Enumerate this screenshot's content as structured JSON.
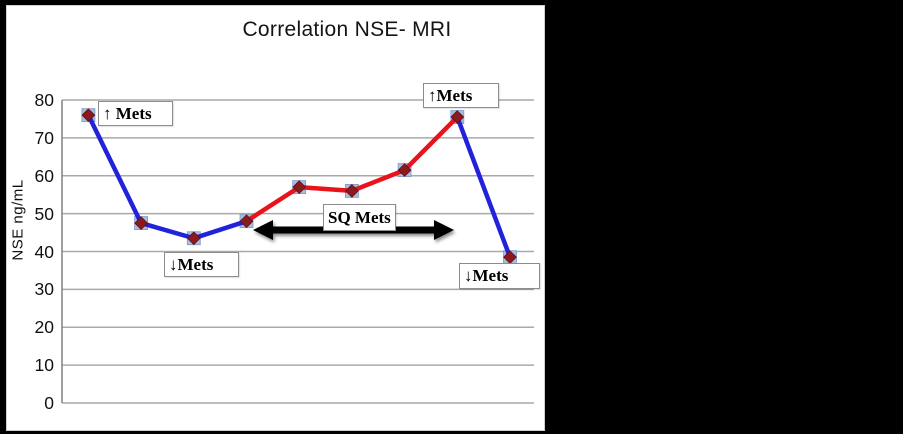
{
  "title": "Correlation NSE- MRI",
  "y_axis": {
    "label": "NSE ng/mL"
  },
  "annotations": {
    "mets_up_left": "↑ Mets",
    "mets_down_left": "↓Mets",
    "sq_mets": "SQ Mets",
    "mets_up_right": "↑Mets",
    "mets_down_right": "↓Mets"
  },
  "colors": {
    "line_blue": "#2222DC",
    "line_red": "#E8131B",
    "marker_diamond": "#8B1A1F",
    "marker_diamond_edge": "#5E1013",
    "marker_halo": "#A9BEDF",
    "marker_halo_edge": "#7E99C8",
    "gridline": "#A9A9A9",
    "axis_line": "#808080",
    "arrow": "#000000",
    "panel_background": "#FFFFFF",
    "page_background": "#000000"
  },
  "chart_data": {
    "type": "line",
    "title": "Correlation NSE- MRI",
    "xlabel": "",
    "ylabel": "NSE ng/mL",
    "ylim": [
      0,
      80
    ],
    "yticks": [
      0,
      10,
      20,
      30,
      40,
      50,
      60,
      70,
      80
    ],
    "grid": true,
    "legend_position": "none",
    "x": [
      1,
      2,
      3,
      4,
      5,
      6,
      7,
      8,
      9
    ],
    "values": [
      76,
      47.5,
      43.5,
      48,
      57,
      56,
      61.5,
      75.5,
      38.5
    ],
    "segment_colors": [
      "blue",
      "blue",
      "blue",
      "red",
      "red",
      "red",
      "red",
      "blue"
    ],
    "marker": "diamond-on-square",
    "annotations": [
      {
        "text": "↑ Mets",
        "near": "point 1, value 76"
      },
      {
        "text": "↓Mets",
        "near": "point 3, value 43.5"
      },
      {
        "text": "SQ Mets",
        "near": "above double arrow spanning points 4 to 8"
      },
      {
        "text": "↑Mets",
        "near": "point 8, value 75.5"
      },
      {
        "text": "↓Mets",
        "near": "point 9, value 38.5"
      }
    ]
  }
}
